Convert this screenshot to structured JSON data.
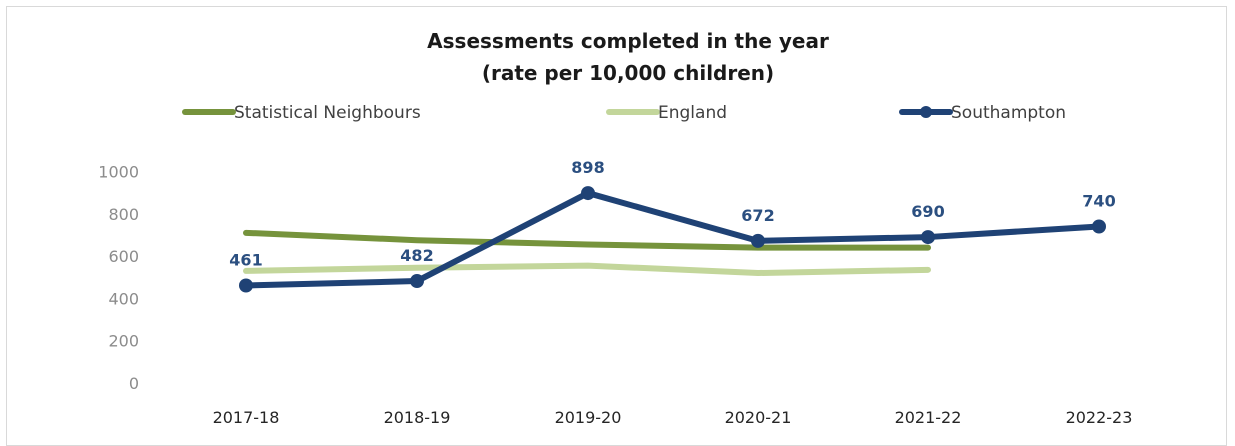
{
  "chart_data": {
    "type": "line",
    "title_line1": "Assessments completed in the year",
    "title_line2": "(rate per 10,000 children)",
    "categories": [
      "2017-18",
      "2018-19",
      "2019-20",
      "2020-21",
      "2021-22",
      "2022-23"
    ],
    "y_ticks": [
      "0",
      "200",
      "400",
      "600",
      "800",
      "1000"
    ],
    "ylim": [
      0,
      1000
    ],
    "grid": false,
    "legend_position": "top",
    "series": [
      {
        "name": "Statistical Neighbours",
        "color": "#76933c",
        "marker": false,
        "values": [
          710,
          675,
          655,
          640,
          640,
          null
        ]
      },
      {
        "name": "England",
        "color": "#c3d69b",
        "marker": false,
        "values": [
          530,
          545,
          555,
          520,
          535,
          null
        ]
      },
      {
        "name": "Southampton",
        "color": "#1f4275",
        "marker": true,
        "values": [
          461,
          482,
          898,
          672,
          690,
          740
        ],
        "labels": [
          "461",
          "482",
          "898",
          "672",
          "690",
          "740"
        ]
      }
    ]
  }
}
